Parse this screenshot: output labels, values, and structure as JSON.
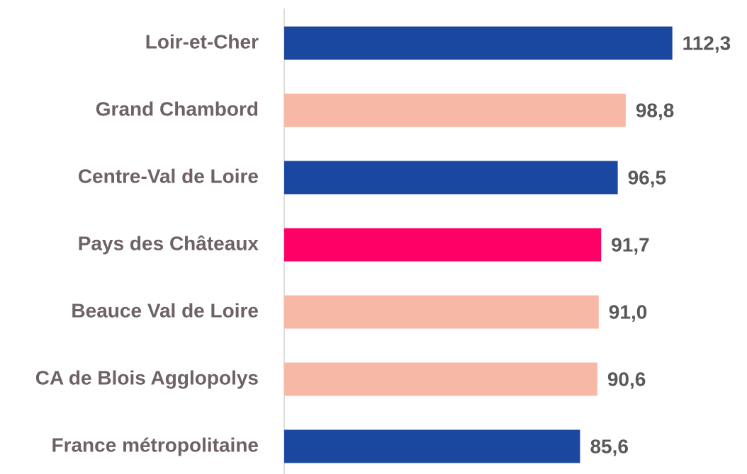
{
  "chart_data": {
    "type": "bar",
    "orientation": "horizontal",
    "categories": [
      "Loir-et-Cher",
      "Grand Chambord",
      "Centre-Val de Loire",
      "Pays des Châteaux",
      "Beauce Val de Loire",
      "CA de Blois Agglopolys",
      "France métropolitaine"
    ],
    "values": [
      112.3,
      98.8,
      96.5,
      91.7,
      91.0,
      90.6,
      85.6
    ],
    "value_labels": [
      "112,3",
      "98,8",
      "96,5",
      "91,7",
      "91,0",
      "90,6",
      "85,6"
    ],
    "colors": [
      "#1a48a0",
      "#f7b9a6",
      "#1a48a0",
      "#ff0066",
      "#f7b9a6",
      "#f7b9a6",
      "#1a48a0"
    ],
    "xlim": [
      0,
      130
    ]
  }
}
